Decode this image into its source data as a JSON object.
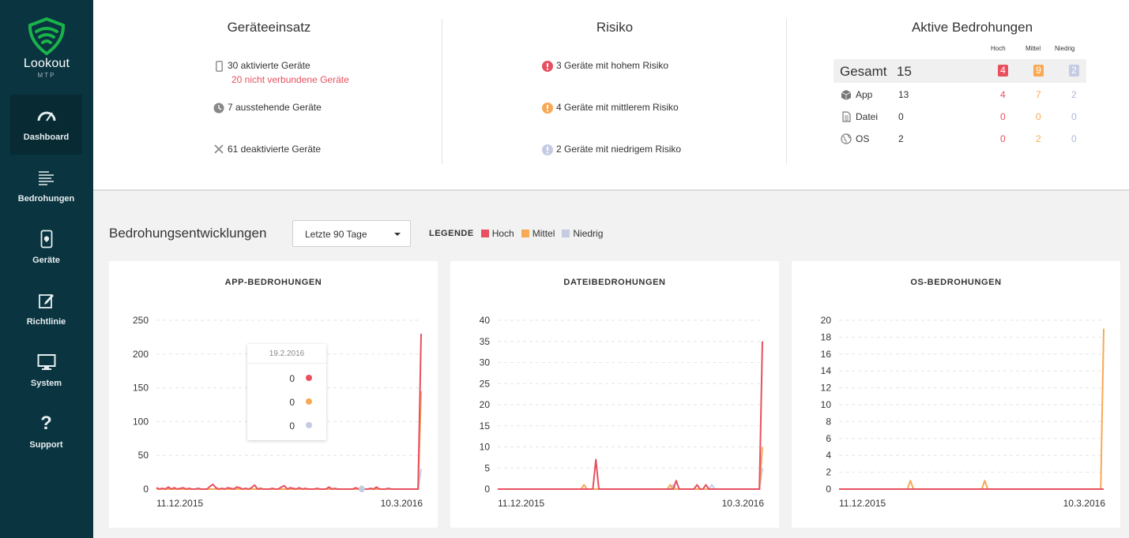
{
  "colors": {
    "high": "#e8505f",
    "medium": "#f7a955",
    "low": "#c5cbe3",
    "sidebar": "#0a3440",
    "brand_green": "#19b34a"
  },
  "brand": {
    "name": "Lookout",
    "sub": "MTP"
  },
  "nav": [
    {
      "label": "Dashboard",
      "icon": "gauge-icon",
      "active": true
    },
    {
      "label": "Bedrohungen",
      "icon": "list-icon"
    },
    {
      "label": "Geräte",
      "icon": "phone-icon"
    },
    {
      "label": "Richtlinie",
      "icon": "edit-icon"
    },
    {
      "label": "System",
      "icon": "monitor-icon"
    },
    {
      "label": "Support",
      "icon": "question-icon"
    }
  ],
  "geraeteeinsatz": {
    "title": "Geräteeinsatz",
    "activated": "30 aktivierte Geräte",
    "disconnected": "20 nicht verbundene Geräte",
    "pending": "7 ausstehende Geräte",
    "deactivated": "61 deaktivierte Geräte"
  },
  "risiko": {
    "title": "Risiko",
    "high": "3 Geräte mit hohem Risiko",
    "medium": "4 Geräte mit mittlerem Risiko",
    "low": "2 Geräte mit niedrigem Risiko"
  },
  "bedrohungen": {
    "title": "Aktive Bedrohungen",
    "col_high": "Hoch",
    "col_medium": "Mittel",
    "col_low": "Niedrig",
    "total_label": "Gesamt",
    "total": "15",
    "total_high": "4",
    "total_medium": "9",
    "total_low": "2",
    "rows": [
      {
        "label": "App",
        "icon": "box-icon",
        "total": "13",
        "high": "4",
        "medium": "7",
        "low": "2"
      },
      {
        "label": "Datei",
        "icon": "file-icon",
        "total": "0",
        "high": "0",
        "medium": "0",
        "low": "0"
      },
      {
        "label": "OS",
        "icon": "globe-icon",
        "total": "2",
        "high": "0",
        "medium": "2",
        "low": "0"
      }
    ]
  },
  "trends": {
    "title": "Bedrohungsentwicklungen",
    "range": "Letzte 90 Tage",
    "legend_title": "LEGENDE",
    "legend": [
      "Hoch",
      "Mittel",
      "Niedrig"
    ]
  },
  "tooltip": {
    "date": "19.2.2016",
    "high": "0",
    "medium": "0",
    "low": "0"
  },
  "chart_data": [
    {
      "type": "line",
      "title": "APP-BEDROHUNGEN",
      "ylim": [
        0,
        250
      ],
      "yticks": [
        0,
        50,
        100,
        150,
        200,
        250
      ],
      "x_start": "11.12.2015",
      "x_end": "10.3.2016",
      "series": [
        {
          "name": "Hoch",
          "values": [
            2,
            0,
            1,
            0,
            3,
            0,
            2,
            0,
            1,
            2,
            0,
            1,
            0,
            0,
            1,
            0,
            0,
            0,
            4,
            7,
            2,
            0,
            1,
            0,
            2,
            1,
            0,
            3,
            2,
            0,
            1,
            0,
            2,
            6,
            0,
            1,
            0,
            0,
            0,
            1,
            0,
            0,
            3,
            5,
            0,
            2,
            1,
            0,
            2,
            0,
            1,
            0,
            0,
            0,
            1,
            0,
            0,
            0,
            3,
            0,
            1,
            0,
            0,
            0,
            0,
            0,
            0,
            2,
            0,
            4,
            0,
            0,
            1,
            0,
            3,
            0,
            0,
            0,
            1,
            0,
            0,
            0,
            0,
            0,
            0,
            0,
            0,
            0,
            0,
            230
          ]
        },
        {
          "name": "Mittel",
          "values": [
            0,
            0,
            0,
            0,
            0,
            0,
            0,
            0,
            0,
            0,
            0,
            0,
            0,
            0,
            0,
            0,
            0,
            0,
            0,
            0,
            0,
            0,
            0,
            0,
            0,
            0,
            0,
            0,
            0,
            0,
            0,
            0,
            0,
            0,
            0,
            0,
            0,
            0,
            0,
            0,
            0,
            0,
            0,
            0,
            0,
            0,
            0,
            0,
            0,
            0,
            0,
            0,
            0,
            0,
            0,
            0,
            0,
            0,
            0,
            0,
            0,
            0,
            0,
            0,
            0,
            0,
            0,
            0,
            0,
            0,
            0,
            0,
            0,
            0,
            0,
            0,
            0,
            0,
            0,
            0,
            0,
            0,
            0,
            0,
            0,
            0,
            0,
            0,
            0,
            145
          ]
        },
        {
          "name": "Niedrig",
          "values": [
            0,
            0,
            0,
            0,
            0,
            0,
            0,
            0,
            0,
            0,
            0,
            0,
            0,
            0,
            0,
            0,
            0,
            0,
            0,
            0,
            0,
            0,
            0,
            0,
            0,
            0,
            0,
            0,
            0,
            0,
            0,
            0,
            0,
            0,
            0,
            0,
            0,
            0,
            0,
            0,
            0,
            0,
            0,
            0,
            0,
            0,
            0,
            0,
            0,
            0,
            0,
            0,
            0,
            0,
            0,
            0,
            0,
            0,
            0,
            0,
            0,
            0,
            0,
            0,
            0,
            0,
            0,
            0,
            0,
            0,
            0,
            0,
            0,
            0,
            0,
            0,
            0,
            0,
            0,
            0,
            0,
            0,
            0,
            0,
            0,
            0,
            0,
            0,
            0,
            30
          ]
        }
      ]
    },
    {
      "type": "line",
      "title": "DATEIBEDROHUNGEN",
      "ylim": [
        0,
        40
      ],
      "yticks": [
        0,
        5,
        10,
        15,
        20,
        25,
        30,
        35,
        40
      ],
      "x_start": "11.12.2015",
      "x_end": "10.3.2016",
      "series": [
        {
          "name": "Hoch",
          "values": [
            0,
            0,
            0,
            0,
            0,
            0,
            0,
            0,
            0,
            0,
            0,
            0,
            0,
            0,
            0,
            0,
            0,
            0,
            0,
            0,
            0,
            0,
            0,
            0,
            0,
            0,
            0,
            0,
            0,
            0,
            0,
            0,
            0,
            7,
            0,
            0,
            0,
            0,
            0,
            0,
            0,
            0,
            0,
            0,
            0,
            0,
            0,
            0,
            0,
            0,
            0,
            0,
            0,
            0,
            0,
            0,
            0,
            0,
            0,
            0,
            2,
            0,
            0,
            0,
            0,
            0,
            0,
            1,
            0,
            0,
            1,
            0,
            0,
            0,
            0,
            0,
            0,
            0,
            0,
            0,
            0,
            0,
            0,
            0,
            0,
            0,
            0,
            0,
            0,
            35
          ]
        },
        {
          "name": "Mittel",
          "values": [
            0,
            0,
            0,
            0,
            0,
            0,
            0,
            0,
            0,
            0,
            0,
            0,
            0,
            0,
            0,
            0,
            0,
            0,
            0,
            0,
            0,
            0,
            0,
            0,
            0,
            0,
            0,
            0,
            0,
            1,
            0,
            0,
            0,
            0,
            0,
            0,
            0,
            0,
            0,
            0,
            0,
            0,
            0,
            0,
            0,
            0,
            0,
            0,
            0,
            0,
            0,
            0,
            0,
            0,
            0,
            0,
            0,
            0,
            1,
            0,
            0,
            0,
            0,
            0,
            0,
            0,
            0,
            0,
            0,
            0,
            0,
            0,
            0,
            0,
            0,
            0,
            0,
            0,
            0,
            0,
            0,
            0,
            0,
            0,
            0,
            0,
            0,
            0,
            0,
            10
          ]
        },
        {
          "name": "Niedrig",
          "values": [
            0,
            0,
            0,
            0,
            0,
            0,
            0,
            0,
            0,
            0,
            0,
            0,
            0,
            0,
            0,
            0,
            0,
            0,
            0,
            0,
            0,
            0,
            0,
            0,
            0,
            0,
            0,
            0,
            0,
            0,
            0,
            0,
            0,
            0,
            0,
            0,
            0,
            0,
            0,
            0,
            0,
            0,
            0,
            0,
            0,
            0,
            0,
            0,
            0,
            0,
            0,
            0,
            0,
            0,
            0,
            0,
            0,
            0,
            0,
            1,
            0,
            0,
            0,
            0,
            0,
            0,
            0,
            0,
            0,
            0,
            0,
            0,
            1,
            0,
            0,
            0,
            0,
            0,
            0,
            0,
            0,
            0,
            0,
            0,
            0,
            0,
            0,
            0,
            0,
            5
          ]
        }
      ]
    },
    {
      "type": "line",
      "title": "OS-BEDROHUNGEN",
      "ylim": [
        0,
        20
      ],
      "yticks": [
        0,
        2,
        4,
        6,
        8,
        10,
        12,
        14,
        16,
        18,
        20
      ],
      "x_start": "11.12.2015",
      "x_end": "10.3.2016",
      "series": [
        {
          "name": "Hoch",
          "values": [
            0,
            0,
            0,
            0,
            0,
            0,
            0,
            0,
            0,
            0,
            0,
            0,
            0,
            0,
            0,
            0,
            0,
            0,
            0,
            0,
            0,
            0,
            0,
            0,
            0,
            0,
            0,
            0,
            0,
            0,
            0,
            0,
            0,
            0,
            0,
            0,
            0,
            0,
            0,
            0,
            0,
            0,
            0,
            0,
            0,
            0,
            0,
            0,
            0,
            0,
            0,
            0,
            0,
            0,
            0,
            0,
            0,
            0,
            0,
            0,
            0,
            0,
            0,
            0,
            0,
            0,
            0,
            0,
            0,
            0,
            0,
            0,
            0,
            0,
            0,
            0,
            0,
            0,
            0,
            0,
            0,
            0,
            0,
            0,
            0,
            0,
            0,
            0,
            0,
            0
          ]
        },
        {
          "name": "Mittel",
          "values": [
            0,
            0,
            0,
            0,
            0,
            0,
            0,
            0,
            0,
            0,
            0,
            0,
            0,
            0,
            0,
            0,
            0,
            0,
            0,
            0,
            0,
            0,
            0,
            0,
            1,
            0,
            0,
            0,
            0,
            0,
            0,
            0,
            0,
            0,
            0,
            0,
            0,
            0,
            0,
            0,
            0,
            0,
            0,
            0,
            0,
            0,
            0,
            0,
            0,
            1,
            0,
            0,
            0,
            0,
            0,
            0,
            0,
            0,
            0,
            0,
            0,
            0,
            0,
            0,
            0,
            0,
            0,
            0,
            0,
            0,
            0,
            0,
            0,
            0,
            0,
            0,
            0,
            0,
            0,
            0,
            0,
            0,
            0,
            0,
            0,
            0,
            0,
            0,
            0,
            19
          ]
        },
        {
          "name": "Niedrig",
          "values": [
            0,
            0,
            0,
            0,
            0,
            0,
            0,
            0,
            0,
            0,
            0,
            0,
            0,
            0,
            0,
            0,
            0,
            0,
            0,
            0,
            0,
            0,
            0,
            0,
            0,
            0,
            0,
            0,
            0,
            0,
            0,
            0,
            0,
            0,
            0,
            0,
            0,
            0,
            0,
            0,
            0,
            0,
            0,
            0,
            0,
            0,
            0,
            0,
            0,
            0,
            0,
            0,
            0,
            0,
            0,
            0,
            0,
            0,
            0,
            0,
            0,
            0,
            0,
            0,
            0,
            0,
            0,
            0,
            0,
            0,
            0,
            0,
            0,
            0,
            0,
            0,
            0,
            0,
            0,
            0,
            0,
            0,
            0,
            0,
            0,
            0,
            0,
            0,
            0,
            0
          ]
        }
      ]
    }
  ]
}
